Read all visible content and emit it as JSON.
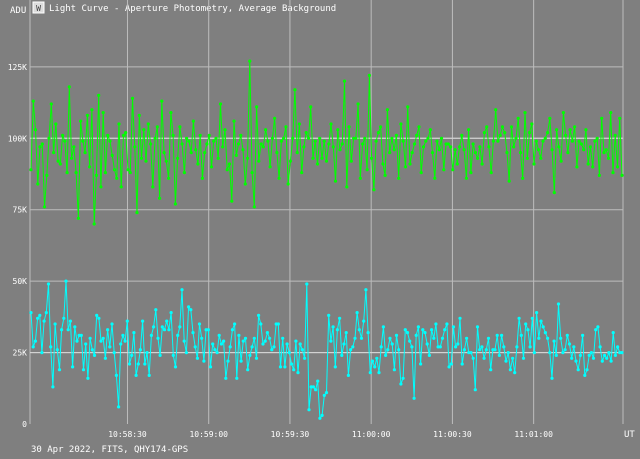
{
  "window": {
    "title": "Light Curve - Aperture Photometry, Average Background",
    "icon": "app-logo-icon"
  },
  "footer": {
    "caption": "30 Apr 2022, FITS, QHY174-GPS"
  },
  "colors": {
    "background": "#7f7f7f",
    "grid": "#bdbdbd",
    "text": "#ffffff",
    "target_series": "#00ff00",
    "comparison_series": "#00ffff"
  },
  "chart_data": {
    "type": "line",
    "title": "",
    "ylabel": "ADU",
    "xlabel": "UT",
    "ylim": [
      0,
      140000
    ],
    "y_ticks": [
      {
        "value": 0,
        "label": "0"
      },
      {
        "value": 25000,
        "label": "25K"
      },
      {
        "value": 50000,
        "label": "50K"
      },
      {
        "value": 75000,
        "label": "75K"
      },
      {
        "value": 100000,
        "label": "100K"
      },
      {
        "value": 125000,
        "label": "125K"
      }
    ],
    "x_unit": "UT",
    "x_range_seconds": [
      "10:57:54",
      "11:01:33"
    ],
    "x_ticks": [
      {
        "t": "10:58:30",
        "label": "10:58:30"
      },
      {
        "t": "10:59:00",
        "label": "10:59:00"
      },
      {
        "t": "10:59:30",
        "label": "10:59:30"
      },
      {
        "t": "11:00:00",
        "label": "11:00:00"
      },
      {
        "t": "11:00:30",
        "label": "11:00:30"
      },
      {
        "t": "11:01:00",
        "label": "11:01:00"
      }
    ],
    "reference_lines": [
      100000,
      25000
    ],
    "series": [
      {
        "color": "#00ff00",
        "values": [
          89000,
          113000,
          103000,
          84000,
          97000,
          98000,
          76000,
          87000,
          100000,
          112000,
          95000,
          105000,
          92000,
          91000,
          101000,
          99000,
          88000,
          118000,
          93000,
          97000,
          88000,
          72000,
          106000,
          99000,
          95000,
          108000,
          90000,
          110000,
          70000,
          87000,
          115000,
          83000,
          109000,
          88000,
          101000,
          99000,
          94000,
          89000,
          86000,
          105000,
          83000,
          101000,
          102000,
          89000,
          88000,
          114000,
          97000,
          74000,
          108000,
          93000,
          103000,
          92000,
          105000,
          98000,
          83000,
          100000,
          104000,
          79000,
          113000,
          95000,
          92000,
          86000,
          109000,
          101000,
          77000,
          93000,
          104000,
          98000,
          88000,
          100000,
          99000,
          95000,
          106000,
          96000,
          91000,
          101000,
          86000,
          95000,
          98000,
          101000,
          90000,
          99000,
          100000,
          93000,
          112000,
          97000,
          103000,
          89000,
          91000,
          78000,
          106000,
          94000,
          98000,
          101000,
          96000,
          84000,
          93000,
          127000,
          88000,
          76000,
          111000,
          92000,
          98000,
          97000,
          103000,
          99000,
          90000,
          100000,
          107000,
          95000,
          86000,
          99000,
          100000,
          104000,
          84000,
          92000,
          100000,
          117000,
          95000,
          105000,
          88000,
          97000,
          102000,
          100000,
          111000,
          93000,
          99000,
          91000,
          100000,
          93000,
          99000,
          92000,
          98000,
          105000,
          97000,
          85000,
          103000,
          96000,
          98000,
          120000,
          83000,
          104000,
          92000,
          100000,
          100000,
          112000,
          86000,
          98000,
          100000,
          89000,
          122000,
          93000,
          82000,
          99000,
          102000,
          104000,
          91000,
          87000,
          110000,
          95000,
          100000,
          96000,
          101000,
          86000,
          105000,
          99000,
          90000,
          111000,
          91000,
          95000,
          98000,
          101000,
          104000,
          88000,
          97000,
          99000,
          100000,
          103000,
          95000,
          86000,
          99000,
          96000,
          100000,
          89000,
          98000,
          98000,
          97000,
          89000,
          96000,
          91000,
          97000,
          101000,
          96000,
          86000,
          103000,
          88000,
          98000,
          95000,
          93000,
          97000,
          91000,
          102000,
          104000,
          97000,
          88000,
          99000,
          110000,
          99000,
          101000,
          104000,
          102000,
          95000,
          85000,
          104000,
          97000,
          100000,
          107000,
          95000,
          86000,
          109000,
          93000,
          102000,
          105000,
          91000,
          99000,
          96000,
          93000,
          99000,
          100000,
          102000,
          107000,
          96000,
          81000,
          103000,
          97000,
          92000,
          109000,
          101000,
          95000,
          103000,
          99000,
          104000,
          90000,
          99000,
          98000,
          96000,
          103000,
          91000,
          97000,
          90000,
          99000,
          100000,
          87000,
          107000,
          95000,
          96000,
          93000,
          109000,
          88000,
          101000,
          90000,
          107000,
          87000
        ]
      },
      {
        "color": "#00ffff",
        "values": [
          39000,
          27000,
          29000,
          37000,
          38000,
          25000,
          36000,
          39000,
          49000,
          27000,
          13000,
          35000,
          26000,
          19000,
          33000,
          37000,
          50000,
          33000,
          36000,
          20000,
          34000,
          29000,
          31000,
          31000,
          19000,
          28000,
          16000,
          30000,
          26000,
          24000,
          38000,
          37000,
          29000,
          30000,
          23000,
          33000,
          27000,
          35000,
          25000,
          17000,
          6000,
          28000,
          31000,
          29000,
          36000,
          21000,
          24000,
          32000,
          17000,
          21000,
          26000,
          36000,
          21000,
          25000,
          17000,
          31000,
          34000,
          40000,
          30000,
          24000,
          34000,
          33000,
          36000,
          33000,
          39000,
          24000,
          20000,
          31000,
          34000,
          47000,
          29000,
          25000,
          41000,
          40000,
          32000,
          27000,
          23000,
          35000,
          30000,
          22000,
          33000,
          33000,
          20000,
          28000,
          26000,
          25000,
          31000,
          28000,
          29000,
          16000,
          22000,
          27000,
          33000,
          35000,
          16000,
          31000,
          22000,
          29000,
          30000,
          19000,
          24000,
          27000,
          30000,
          23000,
          38000,
          35000,
          28000,
          29000,
          32000,
          30000,
          26000,
          27000,
          35000,
          35000,
          20000,
          30000,
          20000,
          28000,
          25000,
          21000,
          19000,
          29000,
          18000,
          28000,
          26000,
          23000,
          49000,
          5000,
          13000,
          13000,
          12000,
          15000,
          2000,
          3000,
          10000,
          11000,
          38000,
          29000,
          34000,
          20000,
          33000,
          37000,
          24000,
          28000,
          32000,
          17000,
          26000,
          27000,
          30000,
          39000,
          33000,
          30000,
          36000,
          47000,
          32000,
          18000,
          22000,
          20000,
          23000,
          18000,
          27000,
          34000,
          24000,
          26000,
          30000,
          28000,
          19000,
          31000,
          26000,
          14000,
          16000,
          33000,
          32000,
          29000,
          27000,
          9000,
          31000,
          34000,
          21000,
          33000,
          32000,
          28000,
          24000,
          33000,
          30000,
          35000,
          27000,
          27000,
          30000,
          33000,
          35000,
          20000,
          21000,
          34000,
          27000,
          28000,
          37000,
          21000,
          26000,
          30000,
          25000,
          25000,
          23000,
          12000,
          34000,
          26000,
          27000,
          23000,
          26000,
          30000,
          19000,
          26000,
          26000,
          31000,
          24000,
          31000,
          27000,
          22000,
          25000,
          19000,
          23000,
          18000,
          27000,
          37000,
          31000,
          23000,
          35000,
          33000,
          27000,
          37000,
          25000,
          39000,
          30000,
          36000,
          34000,
          32000,
          30000,
          25000,
          16000,
          29000,
          24000,
          42000,
          30000,
          25000,
          26000,
          31000,
          28000,
          23000,
          27000,
          22000,
          19000,
          24000,
          31000,
          17000,
          19000,
          24000,
          25000,
          23000,
          33000,
          34000,
          27000,
          22000,
          24000,
          23000,
          25000,
          22000,
          32000,
          24000,
          27000,
          25000,
          25000
        ]
      }
    ]
  }
}
